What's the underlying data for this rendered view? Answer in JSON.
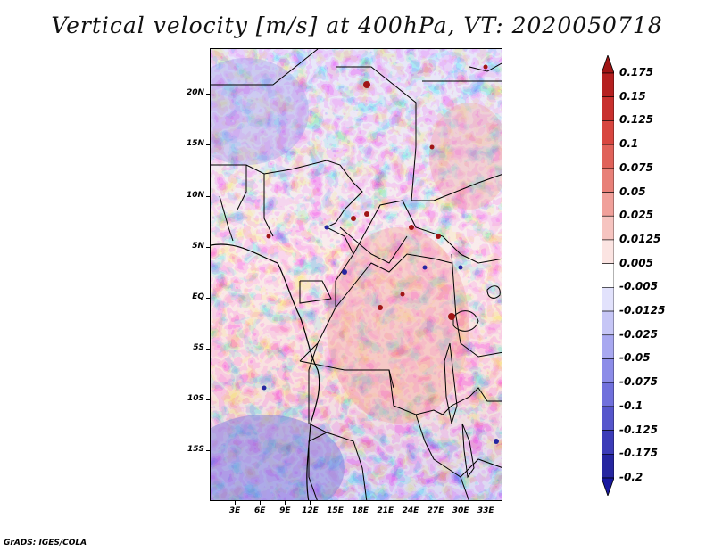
{
  "title": "Vertical velocity [m/s] at 400hPa, VT: 2020050718",
  "footer": "GrADS: IGES/COLA",
  "map": {
    "lat_labels": [
      "20N",
      "15N",
      "10N",
      "5N",
      "EQ",
      "5S",
      "10S",
      "15S"
    ],
    "lon_labels": [
      "3E",
      "6E",
      "9E",
      "12E",
      "15E",
      "18E",
      "21E",
      "24E",
      "27E",
      "30E",
      "33E"
    ],
    "extent": {
      "lon_min": 0,
      "lon_max": 35,
      "lat_min": -20,
      "lat_max": 24.5
    }
  },
  "colorbar": {
    "labels": [
      "0.175",
      "0.15",
      "0.125",
      "0.1",
      "0.075",
      "0.05",
      "0.025",
      "0.0125",
      "0.005",
      "-0.005",
      "-0.0125",
      "-0.025",
      "-0.05",
      "-0.075",
      "-0.1",
      "-0.125",
      "-0.175",
      "-0.2"
    ],
    "colors": [
      "#a01515",
      "#b52020",
      "#c8302e",
      "#d84640",
      "#e0625a",
      "#e88078",
      "#f0a09a",
      "#f6c4c0",
      "#fbe4e2",
      "#ffffff",
      "#e2e2fc",
      "#c6c6f6",
      "#a8a8f0",
      "#8c8ce8",
      "#7070dc",
      "#5656cc",
      "#3c3cb8",
      "#2626a0",
      "#1818a0"
    ]
  }
}
